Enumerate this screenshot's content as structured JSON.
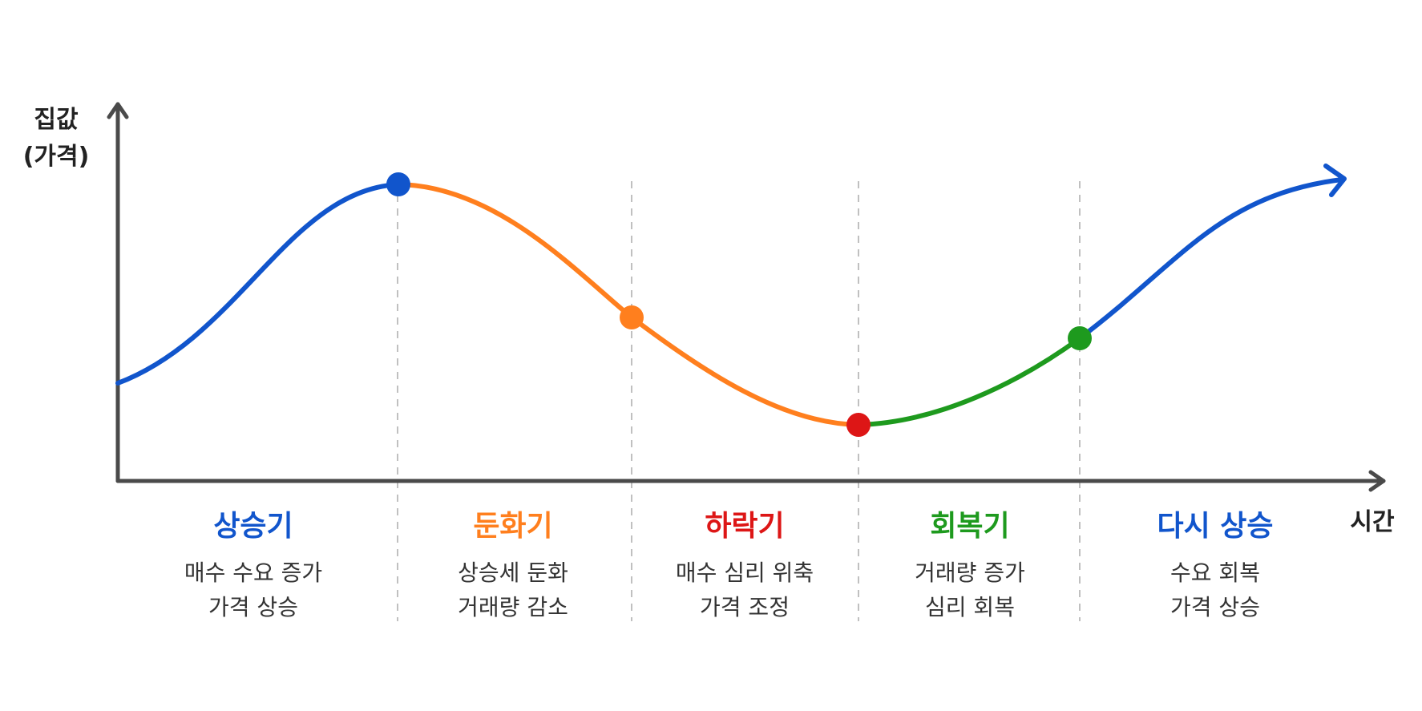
{
  "y_axis_label": [
    "집값",
    "(가격)"
  ],
  "x_axis_label": "시간",
  "phases": [
    {
      "title": "상승기",
      "desc": [
        "매수 수요 증가",
        "가격 상승"
      ],
      "color": "#1155cc"
    },
    {
      "title": "둔화기",
      "desc": [
        "상승세 둔화",
        "거래량 감소"
      ],
      "color": "#ff7f1e"
    },
    {
      "title": "하락기",
      "desc": [
        "매수 심리 위축",
        "가격 조정"
      ],
      "color": "#dd1616"
    },
    {
      "title": "회복기",
      "desc": [
        "거래량 증가",
        "심리 회복"
      ],
      "color": "#1e9a1e"
    },
    {
      "title": "다시 상승",
      "desc": [
        "수요 회복",
        "가격 상승"
      ],
      "color": "#1155cc"
    }
  ],
  "curve_colors": {
    "rise": "#1155cc",
    "slowdown": "#ff7f1e",
    "decline": "#ff7f1e",
    "recovery": "#1e9a1e",
    "rise_again": "#1155cc",
    "axis": "#4a4a4a",
    "divider": "#c0c0c0"
  },
  "markers": [
    {
      "name": "peak",
      "color": "#1155cc"
    },
    {
      "name": "slowdown-point",
      "color": "#ff7f1e"
    },
    {
      "name": "trough",
      "color": "#dd1616"
    },
    {
      "name": "recovery-point",
      "color": "#1e9a1e"
    }
  ]
}
